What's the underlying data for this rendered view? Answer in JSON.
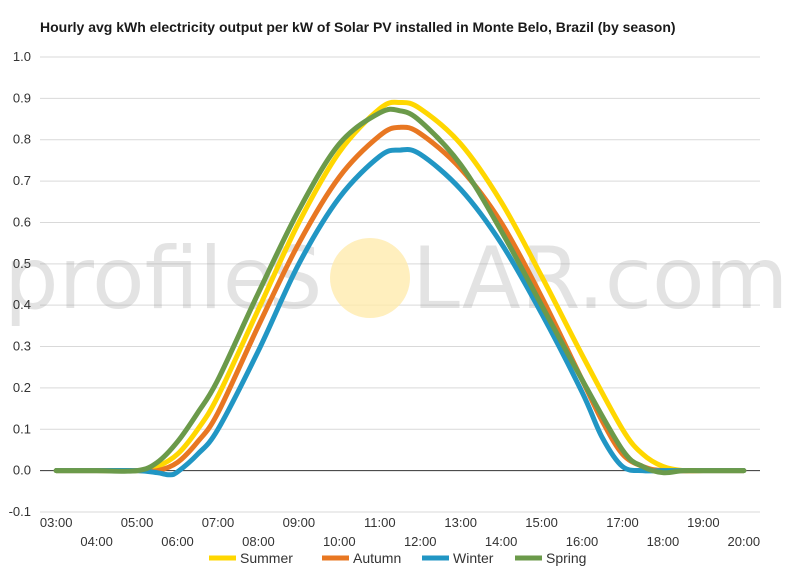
{
  "chart_data": {
    "type": "line",
    "title": "Hourly avg kWh electricity output per kW of Solar PV installed in Monte Belo, Brazil (by season)",
    "xlabel": "",
    "ylabel": "",
    "ylim": [
      -0.1,
      1.0
    ],
    "yticks": [
      "1.0",
      "0.9",
      "0.8",
      "0.7",
      "0.6",
      "0.5",
      "0.4",
      "0.3",
      "0.2",
      "0.1",
      "0.0",
      "-0.1"
    ],
    "x_ticks": [
      "03:00",
      "04:00",
      "05:00",
      "06:00",
      "07:00",
      "08:00",
      "09:00",
      "10:00",
      "11:00",
      "12:00",
      "13:00",
      "14:00",
      "15:00",
      "16:00",
      "17:00",
      "18:00",
      "19:00",
      "20:00"
    ],
    "x_hours": [
      3,
      4,
      5,
      6,
      7,
      8,
      9,
      10,
      11,
      12,
      13,
      14,
      15,
      16,
      17,
      18,
      19,
      20
    ],
    "grid": true,
    "legend_position": "bottom",
    "series": [
      {
        "name": "Summer",
        "color": "#FFD700",
        "x": [
          3,
          4,
          5,
          5.5,
          6,
          6.5,
          7,
          8,
          9,
          10,
          11,
          11.5,
          12,
          13,
          14,
          15,
          16,
          17,
          17.5,
          18,
          18.5,
          19,
          20
        ],
        "y": [
          0.0,
          0.0,
          0.0,
          0.01,
          0.04,
          0.1,
          0.18,
          0.39,
          0.6,
          0.77,
          0.875,
          0.89,
          0.875,
          0.79,
          0.65,
          0.47,
          0.28,
          0.1,
          0.04,
          0.01,
          0.0,
          0.0,
          0.0
        ]
      },
      {
        "name": "Autumn",
        "color": "#E87722",
        "x": [
          3,
          4,
          5,
          5.5,
          6,
          6.5,
          7,
          8,
          9,
          10,
          11,
          11.5,
          12,
          13,
          14,
          15,
          16,
          16.5,
          17,
          17.5,
          18,
          19,
          20
        ],
        "y": [
          0.0,
          0.0,
          0.0,
          0.0,
          0.02,
          0.07,
          0.14,
          0.35,
          0.55,
          0.71,
          0.81,
          0.83,
          0.815,
          0.73,
          0.6,
          0.42,
          0.22,
          0.12,
          0.04,
          0.01,
          0.0,
          0.0,
          0.0
        ]
      },
      {
        "name": "Winter",
        "color": "#2196C4",
        "x": [
          3,
          4,
          5,
          5.5,
          5.8,
          6,
          6.5,
          7,
          8,
          9,
          10,
          11,
          11.5,
          12,
          13,
          14,
          15,
          16,
          16.5,
          17,
          17.5,
          18,
          19,
          20
        ],
        "y": [
          0.0,
          0.0,
          0.0,
          -0.005,
          -0.01,
          -0.003,
          0.04,
          0.1,
          0.29,
          0.5,
          0.66,
          0.76,
          0.775,
          0.765,
          0.68,
          0.55,
          0.38,
          0.19,
          0.08,
          0.01,
          0.0,
          0.0,
          0.0,
          0.0
        ]
      },
      {
        "name": "Spring",
        "color": "#6B9A4A",
        "x": [
          3,
          4,
          5,
          5.5,
          6,
          6.5,
          7,
          8,
          9,
          10,
          11,
          11.5,
          12,
          13,
          14,
          15,
          16,
          17,
          17.5,
          18,
          18.5,
          19,
          20
        ],
        "y": [
          0.0,
          0.0,
          0.0,
          0.02,
          0.07,
          0.14,
          0.22,
          0.43,
          0.63,
          0.79,
          0.865,
          0.87,
          0.845,
          0.74,
          0.58,
          0.4,
          0.22,
          0.05,
          0.01,
          -0.005,
          0.0,
          0.0,
          0.0
        ]
      }
    ]
  },
  "watermark": {
    "prefix": "profile",
    "s": "S",
    "suffix": "LAR.com",
    "sun_color": "#FFE9A8"
  }
}
